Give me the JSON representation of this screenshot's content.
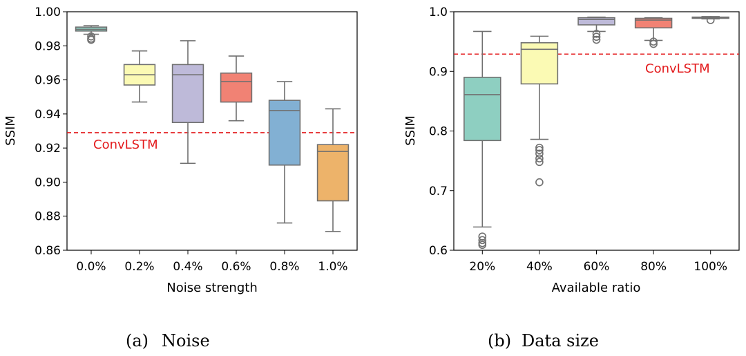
{
  "chart_data": [
    {
      "id": "noise",
      "type": "box",
      "caption_label": "(a)",
      "caption_text": "Noise",
      "xlabel": "Noise strength",
      "ylabel": "SSIM",
      "ylim": [
        0.86,
        1.0
      ],
      "yticks": [
        "0.86",
        "0.88",
        "0.90",
        "0.92",
        "0.94",
        "0.96",
        "0.98",
        "1.00"
      ],
      "ytick_values": [
        0.86,
        0.88,
        0.9,
        0.92,
        0.94,
        0.96,
        0.98,
        1.0
      ],
      "categories": [
        "0.0%",
        "0.2%",
        "0.4%",
        "0.6%",
        "0.8%",
        "1.0%"
      ],
      "boxes": [
        {
          "q1": 0.9887,
          "median": 0.9897,
          "q3": 0.991,
          "whisker_low": 0.9868,
          "whisker_high": 0.9918,
          "outliers": [
            0.9855,
            0.9842,
            0.9835
          ],
          "color": "#8ecfc1"
        },
        {
          "q1": 0.957,
          "median": 0.963,
          "q3": 0.969,
          "whisker_low": 0.947,
          "whisker_high": 0.977,
          "outliers": [],
          "color": "#fbfab4"
        },
        {
          "q1": 0.935,
          "median": 0.963,
          "q3": 0.969,
          "whisker_low": 0.911,
          "whisker_high": 0.983,
          "outliers": [],
          "color": "#bebad9"
        },
        {
          "q1": 0.947,
          "median": 0.959,
          "q3": 0.964,
          "whisker_low": 0.936,
          "whisker_high": 0.974,
          "outliers": [],
          "color": "#f18274"
        },
        {
          "q1": 0.91,
          "median": 0.942,
          "q3": 0.948,
          "whisker_low": 0.876,
          "whisker_high": 0.959,
          "outliers": [],
          "color": "#82b0d3"
        },
        {
          "q1": 0.889,
          "median": 0.918,
          "q3": 0.922,
          "whisker_low": 0.871,
          "whisker_high": 0.943,
          "outliers": [],
          "color": "#edb36a"
        }
      ],
      "reference": {
        "label": "ConvLSTM",
        "value": 0.929,
        "color": "#e31a1c",
        "label_position": "left"
      }
    },
    {
      "id": "datasize",
      "type": "box",
      "caption_label": "(b)",
      "caption_text": "Data size",
      "xlabel": "Available ratio",
      "ylabel": "SSIM",
      "ylim": [
        0.6,
        1.0
      ],
      "yticks": [
        "0.6",
        "0.7",
        "0.8",
        "0.9",
        "1.0"
      ],
      "ytick_values": [
        0.6,
        0.7,
        0.8,
        0.9,
        1.0
      ],
      "categories": [
        "20%",
        "40%",
        "60%",
        "80%",
        "100%"
      ],
      "boxes": [
        {
          "q1": 0.784,
          "median": 0.861,
          "q3": 0.89,
          "whisker_low": 0.639,
          "whisker_high": 0.967,
          "outliers": [
            0.623,
            0.617,
            0.612,
            0.609
          ],
          "color": "#8ecfc1"
        },
        {
          "q1": 0.879,
          "median": 0.937,
          "q3": 0.948,
          "whisker_low": 0.786,
          "whisker_high": 0.959,
          "outliers": [
            0.772,
            0.768,
            0.762,
            0.754,
            0.748,
            0.714
          ],
          "color": "#fbfab4"
        },
        {
          "q1": 0.978,
          "median": 0.987,
          "q3": 0.99,
          "whisker_low": 0.967,
          "whisker_high": 0.991,
          "outliers": [
            0.963,
            0.958,
            0.953
          ],
          "color": "#bebad9"
        },
        {
          "q1": 0.973,
          "median": 0.986,
          "q3": 0.989,
          "whisker_low": 0.952,
          "whisker_high": 0.99,
          "outliers": [
            0.95,
            0.946
          ],
          "color": "#f18274"
        },
        {
          "q1": 0.989,
          "median": 0.99,
          "q3": 0.991,
          "whisker_low": 0.988,
          "whisker_high": 0.992,
          "outliers": [
            0.986
          ],
          "color": "#82b0d3"
        }
      ],
      "reference": {
        "label": "ConvLSTM",
        "value": 0.929,
        "color": "#e31a1c",
        "label_position": "right"
      }
    }
  ]
}
